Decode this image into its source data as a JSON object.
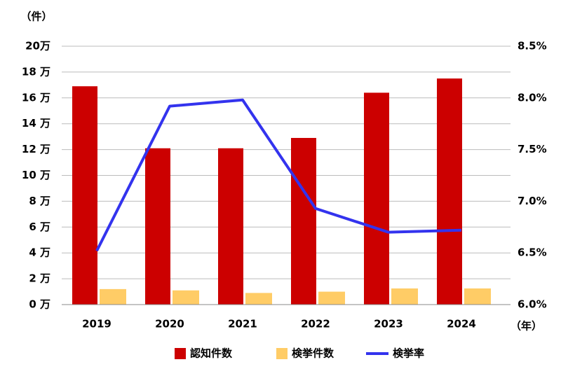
{
  "chart_data": {
    "type": "bar_line",
    "y_axis_label": "（件）",
    "x_axis_label": "（年）",
    "categories": [
      "2019",
      "2020",
      "2021",
      "2022",
      "2023",
      "2024"
    ],
    "series": [
      {
        "name": "認知件数",
        "type": "bar",
        "color": "#cc0000",
        "values": [
          16.9,
          12.1,
          12.1,
          12.9,
          16.4,
          17.5
        ]
      },
      {
        "name": "検挙件数",
        "type": "bar",
        "color": "#ffcc66",
        "values": [
          1.2,
          1.1,
          0.9,
          1.0,
          1.25,
          1.25
        ]
      },
      {
        "name": "検挙率",
        "type": "line",
        "axis": "y2",
        "color": "#3333ee",
        "values": [
          6.52,
          7.92,
          7.98,
          6.93,
          6.7,
          6.72
        ]
      }
    ],
    "ylim": [
      0,
      20
    ],
    "yticks": [
      {
        "value": 0,
        "label": "0 万"
      },
      {
        "value": 2,
        "label": "2 万"
      },
      {
        "value": 4,
        "label": "4 万"
      },
      {
        "value": 6,
        "label": "6 万"
      },
      {
        "value": 8,
        "label": "8 万"
      },
      {
        "value": 10,
        "label": "10 万"
      },
      {
        "value": 12,
        "label": "12 万"
      },
      {
        "value": 14,
        "label": "14 万"
      },
      {
        "value": 16,
        "label": "16 万"
      },
      {
        "value": 18,
        "label": "18 万"
      },
      {
        "value": 20,
        "label": "20万"
      }
    ],
    "y2lim": [
      6.0,
      8.5
    ],
    "y2ticks": [
      {
        "value": 6.0,
        "label": "6.0%"
      },
      {
        "value": 6.5,
        "label": "6.5%"
      },
      {
        "value": 7.0,
        "label": "7.0%"
      },
      {
        "value": 7.5,
        "label": "7.5%"
      },
      {
        "value": 8.0,
        "label": "8.0%"
      },
      {
        "value": 8.5,
        "label": "8.5%"
      }
    ],
    "grid": true,
    "legend": "bottom"
  }
}
